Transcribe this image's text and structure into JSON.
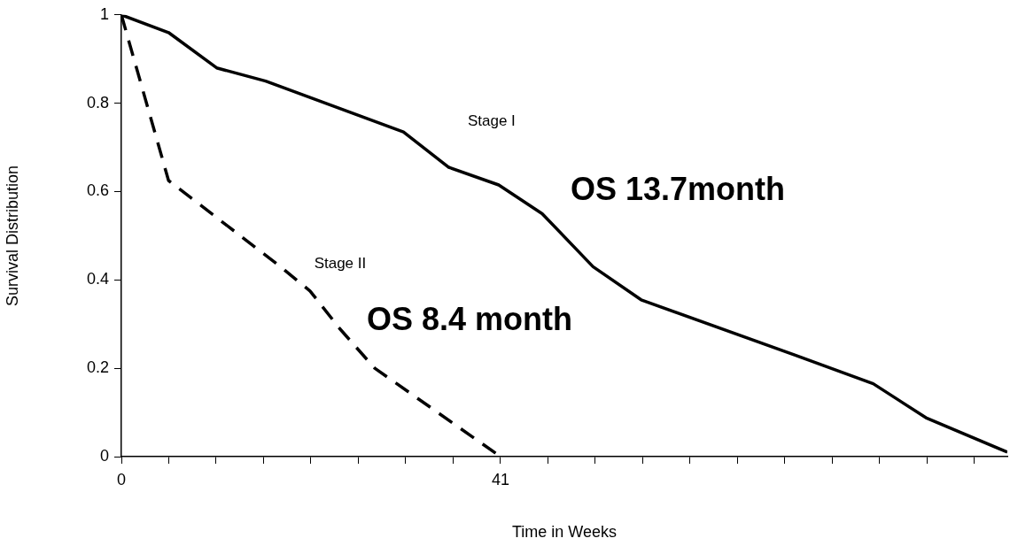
{
  "chart_data": {
    "type": "line",
    "xlabel": "Time in Weeks",
    "ylabel": "Survival Distribution",
    "xlim": [
      0,
      95.8
    ],
    "ylim": [
      0,
      1
    ],
    "xticks": [
      0,
      {
        "value": 5.125,
        "label": null
      },
      {
        "value": 10.25,
        "label": null
      },
      {
        "value": 15.375,
        "label": null
      },
      {
        "value": 20.5,
        "label": null
      },
      {
        "value": 25.625,
        "label": null
      },
      {
        "value": 30.75,
        "label": null
      },
      {
        "value": 35.875,
        "label": null
      },
      41,
      {
        "value": 46.125,
        "label": null
      },
      {
        "value": 51.25,
        "label": null
      },
      {
        "value": 56.375,
        "label": null
      },
      {
        "value": 61.5,
        "label": null
      },
      {
        "value": 66.625,
        "label": null
      },
      {
        "value": 71.75,
        "label": null
      },
      {
        "value": 76.875,
        "label": null
      },
      {
        "value": 82,
        "label": null
      },
      {
        "value": 87.125,
        "label": null
      },
      {
        "value": 92.25,
        "label": null
      }
    ],
    "yticks": [
      0,
      0.2,
      0.4,
      0.6,
      0.8,
      1
    ],
    "grid": false,
    "legend": false,
    "marker": "none",
    "series": [
      {
        "name": "Stage I",
        "color": "#000000",
        "line_style": "solid",
        "x": [
          0,
          5.1,
          10.3,
          15.6,
          30.5,
          35.4,
          40.8,
          45.5,
          51,
          56.2,
          72.8,
          81.3,
          87,
          95.8
        ],
        "values": [
          1,
          0.96,
          0.88,
          0.85,
          0.735,
          0.655,
          0.615,
          0.55,
          0.43,
          0.355,
          0.23,
          0.165,
          0.088,
          0.01
        ]
      },
      {
        "name": "Stage II",
        "color": "#000000",
        "line_style": "dashed",
        "x": [
          0,
          5.1,
          17.2,
          20.4,
          23.6,
          27.4,
          41
        ],
        "values": [
          1,
          0.625,
          0.43,
          0.375,
          0.29,
          0.2,
          0
        ]
      }
    ],
    "annotations": [
      "OS 13.7month",
      "OS 8.4 month"
    ]
  }
}
